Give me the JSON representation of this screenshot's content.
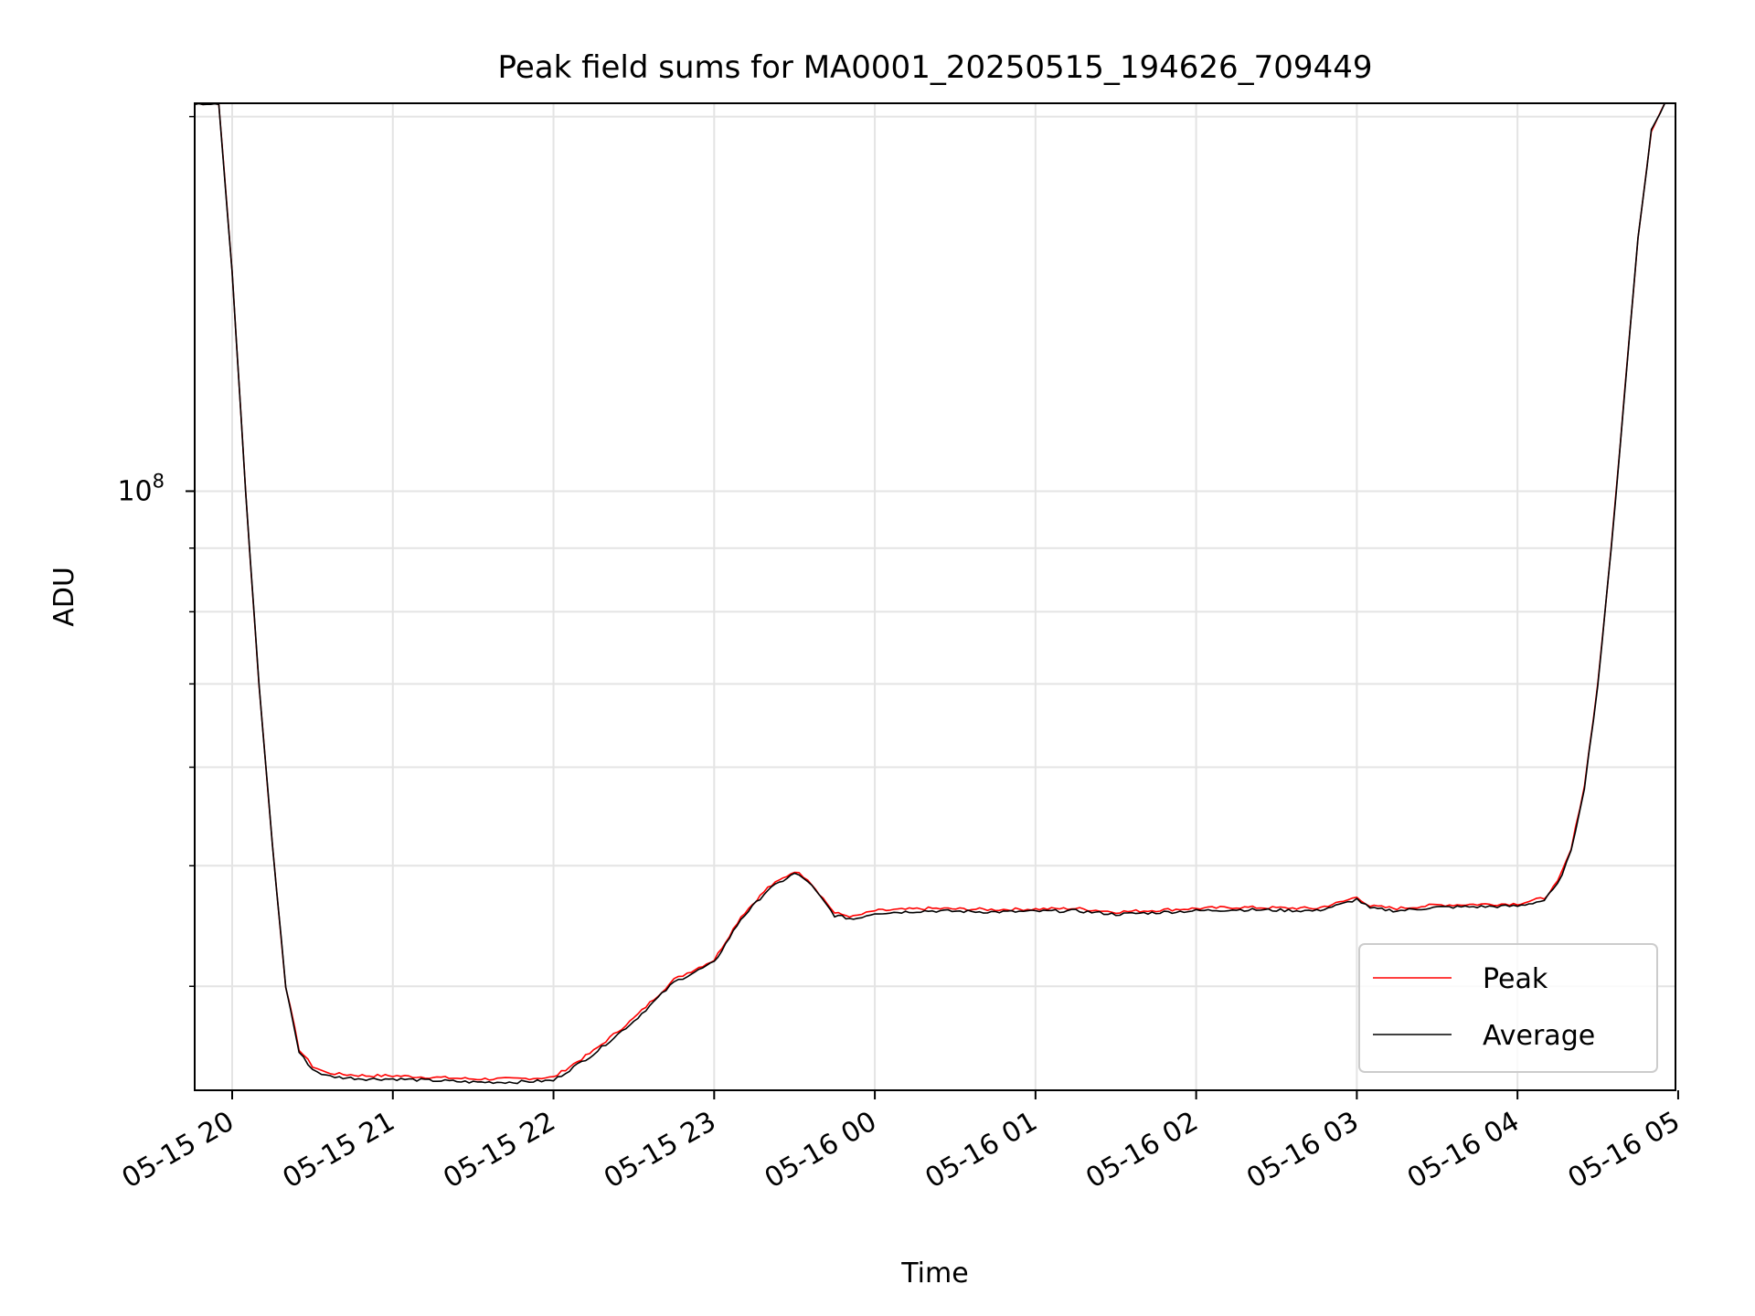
{
  "chart_data": {
    "type": "line",
    "title": "Peak field sums for MA0001_20250515_194626_709449",
    "xlabel": "Time",
    "ylabel": "ADU",
    "y_scale": "log",
    "ylim": [
      33000000,
      205000000
    ],
    "xlim": [
      "2025-05-15 19:46",
      "2025-05-16 04:59"
    ],
    "x_ticks": [
      "05-15 20",
      "05-15 21",
      "05-15 22",
      "05-15 23",
      "05-16 00",
      "05-16 01",
      "05-16 02",
      "05-16 03",
      "05-16 04",
      "05-16 05"
    ],
    "y_tick_labels": [
      {
        "base": "10",
        "exponent": "8"
      }
    ],
    "grid": true,
    "legend_position": "lower-right",
    "x": [
      "2025-05-15 19:46",
      "2025-05-15 19:55",
      "2025-05-15 20:00",
      "2025-05-15 20:05",
      "2025-05-15 20:10",
      "2025-05-15 20:15",
      "2025-05-15 20:20",
      "2025-05-15 20:25",
      "2025-05-15 20:30",
      "2025-05-15 20:35",
      "2025-05-15 20:40",
      "2025-05-15 20:50",
      "2025-05-15 21:00",
      "2025-05-15 21:15",
      "2025-05-15 21:30",
      "2025-05-15 21:45",
      "2025-05-15 22:00",
      "2025-05-15 22:15",
      "2025-05-15 22:30",
      "2025-05-15 22:45",
      "2025-05-15 22:50",
      "2025-05-15 23:00",
      "2025-05-15 23:10",
      "2025-05-15 23:20",
      "2025-05-15 23:30",
      "2025-05-15 23:35",
      "2025-05-15 23:45",
      "2025-05-15 23:52",
      "2025-05-16 00:00",
      "2025-05-16 00:10",
      "2025-05-16 00:20",
      "2025-05-16 00:45",
      "2025-05-16 01:15",
      "2025-05-16 01:30",
      "2025-05-16 02:00",
      "2025-05-16 02:15",
      "2025-05-16 02:45",
      "2025-05-16 02:55",
      "2025-05-16 03:00",
      "2025-05-16 03:05",
      "2025-05-16 03:15",
      "2025-05-16 03:30",
      "2025-05-16 04:00",
      "2025-05-16 04:10",
      "2025-05-16 04:15",
      "2025-05-16 04:20",
      "2025-05-16 04:25",
      "2025-05-16 04:30",
      "2025-05-16 04:35",
      "2025-05-16 04:40",
      "2025-05-16 04:45",
      "2025-05-16 04:50",
      "2025-05-16 04:55",
      "2025-05-16 04:59"
    ],
    "series": [
      {
        "name": "Peak",
        "color": "#ff0000",
        "values": [
          205000000,
          205000000,
          150000000,
          100000000,
          70000000,
          52000000,
          40000000,
          35600000,
          34500000,
          34100000,
          34000000,
          33900000,
          33900000,
          33800000,
          33700000,
          33700000,
          33800000,
          35500000,
          37700000,
          40500000,
          41000000,
          42000000,
          45500000,
          48000000,
          49500000,
          48800000,
          45800000,
          45500000,
          46000000,
          46100000,
          46200000,
          46100000,
          46200000,
          45900000,
          46200000,
          46300000,
          46200000,
          46800000,
          47200000,
          46400000,
          46200000,
          46500000,
          46600000,
          47100000,
          48500000,
          51500000,
          58000000,
          70000000,
          90000000,
          120000000,
          160000000,
          195000000,
          205000000,
          205000000
        ]
      },
      {
        "name": "Average",
        "color": "#000000",
        "values": [
          205000000,
          205000000,
          150000000,
          100000000,
          70000000,
          52000000,
          40000000,
          35400000,
          34300000,
          33900000,
          33800000,
          33700000,
          33700000,
          33600000,
          33500000,
          33500000,
          33600000,
          35300000,
          37500000,
          40300000,
          40800000,
          41800000,
          45300000,
          47800000,
          49300000,
          48600000,
          45600000,
          45300000,
          45800000,
          45900000,
          46000000,
          45900000,
          46000000,
          45700000,
          46000000,
          46100000,
          46000000,
          46600000,
          47000000,
          46200000,
          46000000,
          46300000,
          46400000,
          46900000,
          48300000,
          51300000,
          57800000,
          69800000,
          89800000,
          119800000,
          159800000,
          195000000,
          205000000,
          205000000
        ]
      }
    ]
  }
}
